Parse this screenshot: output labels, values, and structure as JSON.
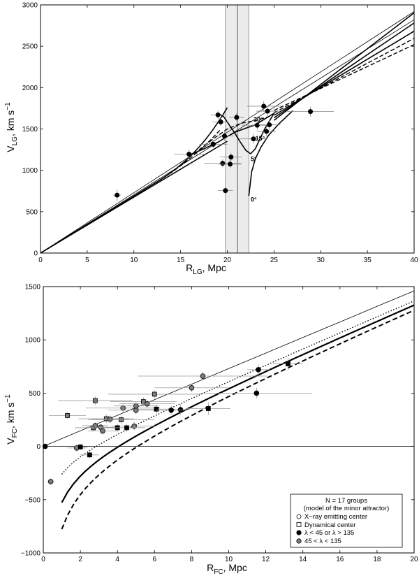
{
  "chart_data": [
    {
      "type": "line",
      "xlabel_main": "R",
      "xlabel_sub": "LG",
      "xlabel_unit": ", Mpc",
      "ylabel_main": "V",
      "ylabel_sub": "LG",
      "ylabel_unit": ", km s",
      "ylabel_sup": "−1",
      "xlim": [
        0,
        40
      ],
      "ylim": [
        0,
        3000
      ],
      "xticks": [
        "0",
        "5",
        "10",
        "15",
        "20",
        "25",
        "30",
        "35",
        "40"
      ],
      "yticks": [
        "0",
        "500",
        "1000",
        "1500",
        "2000",
        "2500",
        "3000"
      ],
      "band": {
        "x0": 19.8,
        "x1": 22.3,
        "center": 21.1
      },
      "hubble_lines": [
        {
          "slope": 73.0
        },
        {
          "slope": 70.5
        }
      ],
      "curve_labels": [
        {
          "text": "0°",
          "x": 22.5,
          "y": 620
        },
        {
          "text": "5°",
          "x": 22.5,
          "y": 1110
        },
        {
          "text": "15°",
          "x": 23.0,
          "y": 1360
        },
        {
          "text": "30°",
          "x": 22.8,
          "y": 1590
        }
      ],
      "points": [
        {
          "x": 8.2,
          "y": 700,
          "xerr": 0.4,
          "yerr": 70
        },
        {
          "x": 15.9,
          "y": 1195,
          "xerr": 1.6,
          "yerr": 60
        },
        {
          "x": 18.5,
          "y": 1315,
          "xerr": 1.5,
          "yerr": 50
        },
        {
          "x": 19.0,
          "y": 1670,
          "xerr": 0.8,
          "yerr": 50
        },
        {
          "x": 19.3,
          "y": 1585,
          "xerr": 0.8,
          "yerr": 50
        },
        {
          "x": 19.5,
          "y": 1085,
          "xerr": 2.0,
          "yerr": 50
        },
        {
          "x": 19.8,
          "y": 755,
          "xerr": 0.8,
          "yerr": 50
        },
        {
          "x": 19.7,
          "y": 1415,
          "xerr": 1.0,
          "yerr": 60
        },
        {
          "x": 20.3,
          "y": 1075,
          "xerr": 1.2,
          "yerr": 50
        },
        {
          "x": 20.4,
          "y": 1160,
          "xerr": 1.2,
          "yerr": 50
        },
        {
          "x": 21.0,
          "y": 1640,
          "xerr": 0.8,
          "yerr": 50
        },
        {
          "x": 22.8,
          "y": 1380,
          "xerr": 1.5,
          "yerr": 60
        },
        {
          "x": 23.2,
          "y": 1545,
          "xerr": 1.6,
          "yerr": 60
        },
        {
          "x": 23.9,
          "y": 1775,
          "xerr": 1.8,
          "yerr": 60
        },
        {
          "x": 24.2,
          "y": 1470,
          "xerr": 1.0,
          "yerr": 60
        },
        {
          "x": 24.3,
          "y": 1715,
          "xerr": 1.2,
          "yerr": 60
        },
        {
          "x": 24.5,
          "y": 1550,
          "xerr": 1.2,
          "yerr": 60
        },
        {
          "x": 28.9,
          "y": 1710,
          "xerr": 2.5,
          "yerr": 60
        }
      ]
    },
    {
      "type": "scatter",
      "xlabel_main": "R",
      "xlabel_sub": "FC",
      "xlabel_unit": ", Mpc",
      "ylabel_main": "V",
      "ylabel_sub": "FC",
      "ylabel_unit": ", km s",
      "ylabel_sup": "−1",
      "xlim": [
        0,
        20
      ],
      "ylim": [
        -1000,
        1500
      ],
      "xticks": [
        "0",
        "2",
        "4",
        "6",
        "8",
        "10",
        "12",
        "14",
        "16",
        "18",
        "20"
      ],
      "yticks": [
        "−1000",
        "−500",
        "0",
        "500",
        "1000",
        "1500"
      ],
      "legend": {
        "position": "bottom-right",
        "title_1": "N = 17 groups",
        "title_2": "(model of the minor attractor)",
        "entries": [
          "X−ray emitting center",
          "Dynamical center",
          "λ < 45 or λ > 135",
          "45 < λ < 135"
        ]
      },
      "points_black_circle": [
        {
          "x": 0.1,
          "y": 0,
          "xerr": 0,
          "yerr": 0
        },
        {
          "x": 11.5,
          "y": 500,
          "xerr": 3.0,
          "yerr": 50
        },
        {
          "x": 11.6,
          "y": 720,
          "xerr": 0.6,
          "yerr": 50
        },
        {
          "x": 7.4,
          "y": 345,
          "xerr": 0.5,
          "yerr": 50
        },
        {
          "x": 6.9,
          "y": 340,
          "xerr": 0.8,
          "yerr": 40
        }
      ],
      "points_black_square": [
        {
          "x": 2.0,
          "y": -5,
          "xerr": 0.4,
          "yerr": 30
        },
        {
          "x": 2.5,
          "y": -80,
          "xerr": 0.5,
          "yerr": 30
        },
        {
          "x": 4.0,
          "y": 175,
          "xerr": 1.0,
          "yerr": 40
        },
        {
          "x": 4.5,
          "y": 175,
          "xerr": 1.0,
          "yerr": 40
        },
        {
          "x": 6.1,
          "y": 350,
          "xerr": 1.0,
          "yerr": 40
        },
        {
          "x": 8.9,
          "y": 355,
          "xerr": 1.2,
          "yerr": 60
        },
        {
          "x": 13.2,
          "y": 775,
          "xerr": 0.8,
          "yerr": 60
        }
      ],
      "points_gray_circle": [
        {
          "x": 0.4,
          "y": -330,
          "xerr": 0.2,
          "yerr": 30
        },
        {
          "x": 1.8,
          "y": -15,
          "xerr": 0.5,
          "yerr": 30
        },
        {
          "x": 2.8,
          "y": 195,
          "xerr": 0.7,
          "yerr": 30
        },
        {
          "x": 3.1,
          "y": 180,
          "xerr": 0.8,
          "yerr": 30
        },
        {
          "x": 3.2,
          "y": 145,
          "xerr": 0.8,
          "yerr": 30
        },
        {
          "x": 3.6,
          "y": 255,
          "xerr": 1.0,
          "yerr": 40
        },
        {
          "x": 4.3,
          "y": 360,
          "xerr": 2.0,
          "yerr": 40
        },
        {
          "x": 4.9,
          "y": 190,
          "xerr": 1.2,
          "yerr": 40
        },
        {
          "x": 5.0,
          "y": 340,
          "xerr": 1.5,
          "yerr": 40
        },
        {
          "x": 5.0,
          "y": 380,
          "xerr": 1.2,
          "yerr": 40
        },
        {
          "x": 5.6,
          "y": 400,
          "xerr": 1.5,
          "yerr": 40
        },
        {
          "x": 8.0,
          "y": 550,
          "xerr": 2.0,
          "yerr": 40
        },
        {
          "x": 8.6,
          "y": 660,
          "xerr": 3.5,
          "yerr": 40
        }
      ],
      "points_gray_square": [
        {
          "x": 1.3,
          "y": 290,
          "xerr": 1.0,
          "yerr": 30
        },
        {
          "x": 2.8,
          "y": 430,
          "xerr": 2.0,
          "yerr": 40
        },
        {
          "x": 2.7,
          "y": 175,
          "xerr": 1.0,
          "yerr": 30
        },
        {
          "x": 3.4,
          "y": 260,
          "xerr": 1.5,
          "yerr": 40
        },
        {
          "x": 4.2,
          "y": 250,
          "xerr": 1.8,
          "yerr": 40
        },
        {
          "x": 5.4,
          "y": 420,
          "xerr": 1.8,
          "yerr": 40
        },
        {
          "x": 6.0,
          "y": 490,
          "xerr": 2.5,
          "yerr": 40
        }
      ]
    }
  ]
}
